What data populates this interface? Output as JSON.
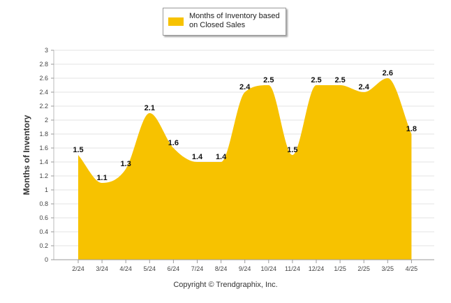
{
  "chart_data": {
    "type": "area",
    "categories": [
      "2/24",
      "3/24",
      "4/24",
      "5/24",
      "6/24",
      "7/24",
      "8/24",
      "9/24",
      "10/24",
      "11/24",
      "12/24",
      "1/25",
      "2/25",
      "3/25",
      "4/25"
    ],
    "series": [
      {
        "name": "Months of Inventory based on Closed Sales",
        "values": [
          1.5,
          1.1,
          1.3,
          2.1,
          1.6,
          1.4,
          1.4,
          2.4,
          2.5,
          1.5,
          2.5,
          2.5,
          2.4,
          2.6,
          1.8
        ],
        "labels": [
          "1.5",
          "1.1",
          "1.3",
          "2.1",
          "1.6",
          "1.4",
          "1.4",
          "2.4",
          "2.5",
          "1.5",
          "2.5",
          "2.5",
          "2.4",
          "2.6",
          "1.8"
        ],
        "color": "#f7c200"
      }
    ],
    "ylabel": "Months of Inventory",
    "ylim": [
      0,
      3
    ],
    "yticks": [
      "0",
      "0.2",
      "0.4",
      "0.6",
      "0.8",
      "1",
      "1.2",
      "1.4",
      "1.6",
      "1.8",
      "2",
      "2.2",
      "2.4",
      "2.6",
      "2.8",
      "3"
    ],
    "grid": true,
    "legend_position": "top-center",
    "curve": "smooth"
  },
  "footer": {
    "copyright": "Copyright © Trendgraphix, Inc."
  }
}
